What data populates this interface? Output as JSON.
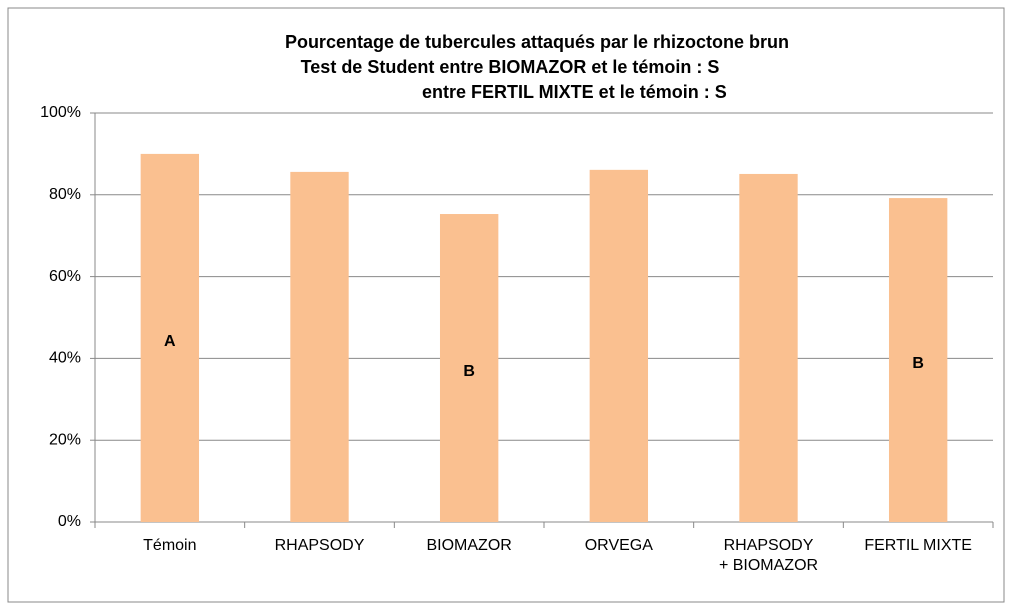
{
  "chart_data": {
    "type": "bar",
    "title": "Pourcentage de tubercules attaqués par le rhizoctone brun",
    "subtitle": [
      "Test de Student entre BIOMAZOR  et le témoin : S",
      "entre FERTIL  MIXTE et le témoin : S"
    ],
    "categories": [
      "Témoin",
      "RHAPSODY",
      "BIOMAZOR",
      "ORVEGA",
      "RHAPSODY\n+ BIOMAZOR",
      "FERTIL MIXTE"
    ],
    "values": [
      90.0,
      85.6,
      75.3,
      86.1,
      85.1,
      79.2
    ],
    "bar_labels": [
      "A",
      null,
      "B",
      null,
      null,
      "B"
    ],
    "color": "#fac090",
    "ylim": [
      0,
      100
    ],
    "yticks": [
      {
        "value": 0,
        "label": "0%"
      },
      {
        "value": 20,
        "label": "20%"
      },
      {
        "value": 40,
        "label": "40%"
      },
      {
        "value": 60,
        "label": "60%"
      },
      {
        "value": 80,
        "label": "80%"
      },
      {
        "value": 100,
        "label": "100%"
      }
    ],
    "grid": true
  }
}
